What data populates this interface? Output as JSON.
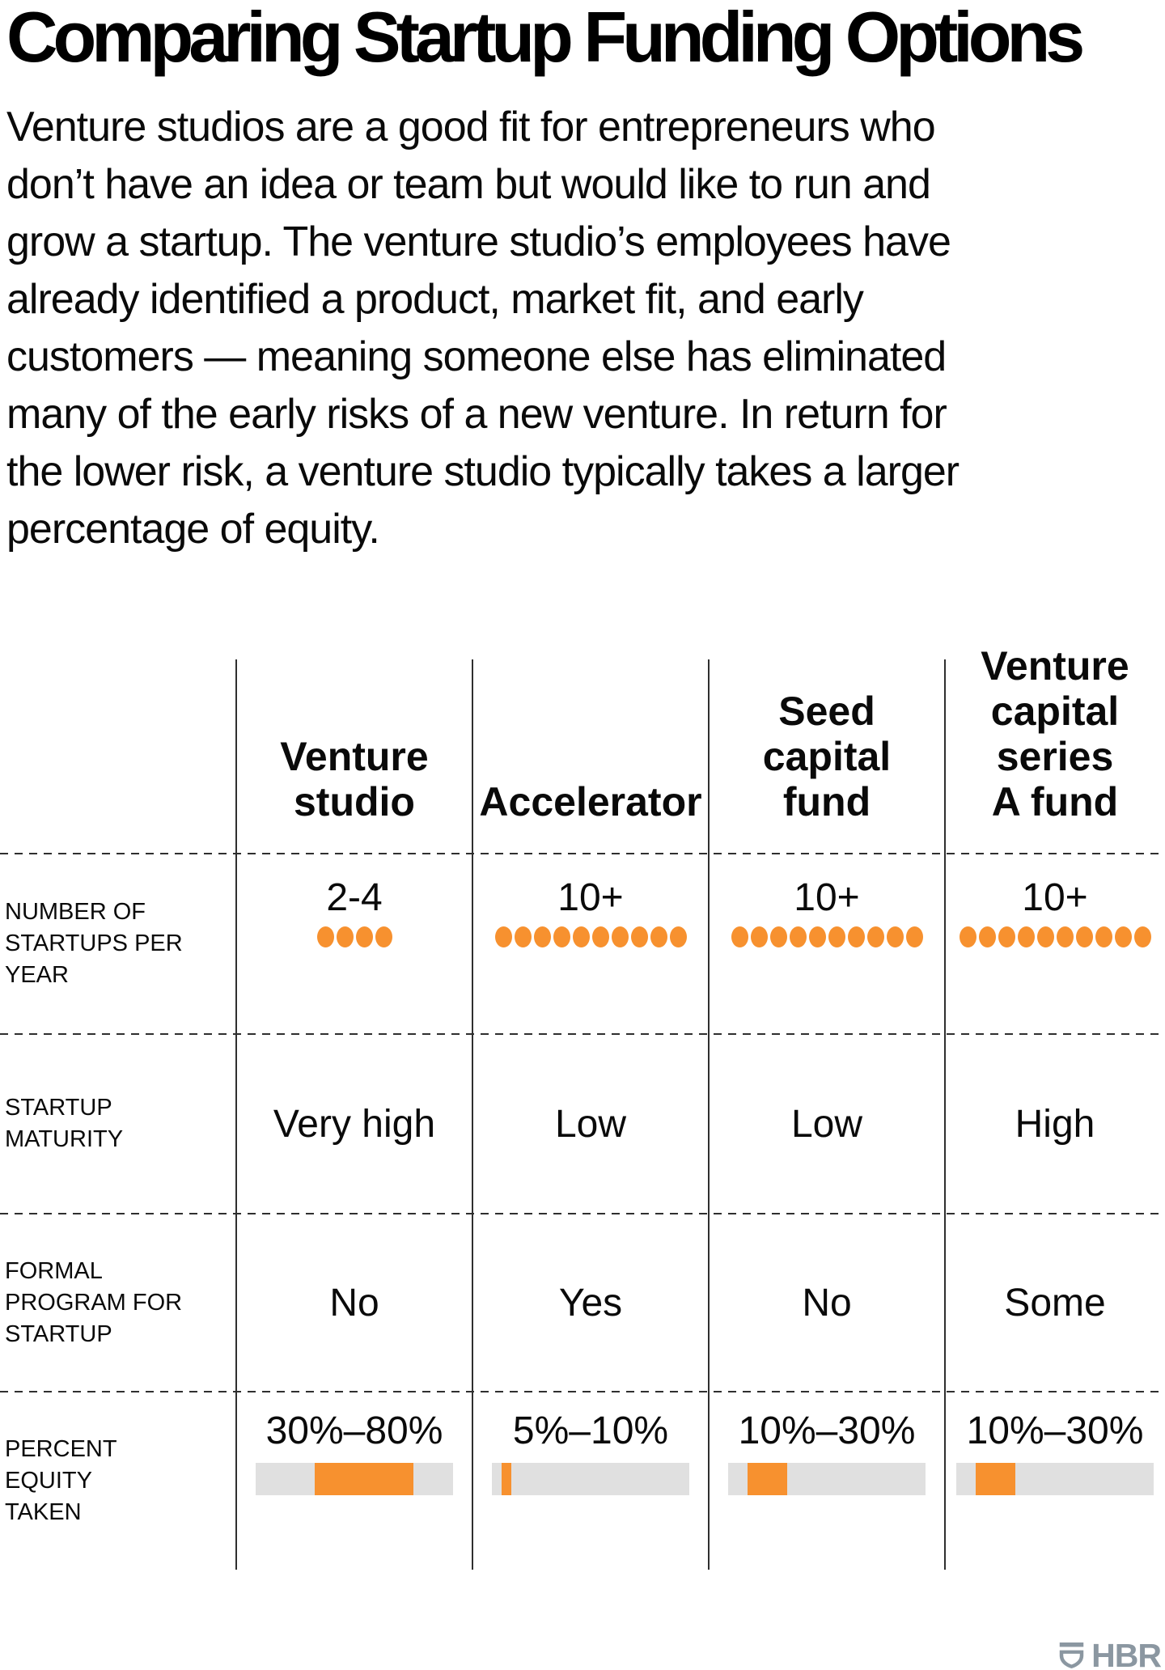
{
  "title": "Comparing Startup Funding Options",
  "intro": "Venture studios are a good fit for entrepreneurs who\ndon’t have an idea or team but would like to run and\ngrow a startup. The venture studio’s employees have\nalready identified a product, market fit, and early\ncustomers — meaning someone else has eliminated\nmany of the early risks of a new venture. In return for\nthe lower risk, a venture studio typically takes a larger\npercentage of equity.",
  "chart_data": {
    "type": "table",
    "columns": [
      "Venture\nstudio",
      "Accelerator",
      "Seed\ncapital\nfund",
      "Venture\ncapital\nseries\nA fund"
    ],
    "rows": [
      {
        "label": "NUMBER OF\nSTARTUPS PER\nYEAR",
        "values": [
          "2-4",
          "10+",
          "10+",
          "10+"
        ],
        "dots": [
          4,
          10,
          10,
          10
        ]
      },
      {
        "label": "STARTUP\nMATURITY",
        "values": [
          "Very high",
          "Low",
          "Low",
          "High"
        ]
      },
      {
        "label": "FORMAL\nPROGRAM FOR\nSTARTUP",
        "values": [
          "No",
          "Yes",
          "No",
          "Some"
        ]
      },
      {
        "label": "PERCENT\nEQUITY\nTAKEN",
        "values": [
          "30%–80%",
          "5%–10%",
          "10%–30%",
          "10%–30%"
        ],
        "bars": [
          {
            "min": 30,
            "max": 80
          },
          {
            "min": 5,
            "max": 10
          },
          {
            "min": 10,
            "max": 30
          },
          {
            "min": 10,
            "max": 30
          }
        ],
        "bar_scale": {
          "min": 0,
          "max": 100
        }
      }
    ]
  },
  "colors": {
    "accent_orange": "#F7912F",
    "bar_track_gray": "#E0E0E0",
    "line_color": "#2F2F2F",
    "logo_gray": "#8B97A1"
  },
  "footer": {
    "logo_text": "HBR"
  }
}
